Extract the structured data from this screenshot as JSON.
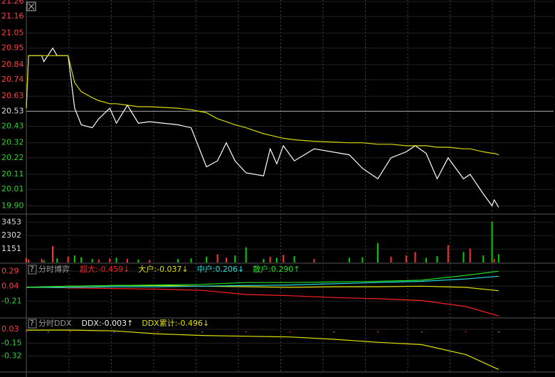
{
  "chart_data": [
    {
      "type": "line",
      "x": [
        0,
        1,
        7,
        8,
        12,
        14,
        19,
        22,
        25,
        30,
        33,
        38,
        41,
        46,
        51,
        56,
        69,
        75,
        82,
        87,
        91,
        95,
        100,
        108,
        111,
        114,
        117,
        122,
        131,
        147,
        153,
        160,
        166,
        173,
        177,
        182,
        187,
        192,
        199,
        202,
        208,
        212,
        213,
        215
      ],
      "xlim": [
        0,
        240
      ],
      "ylim": [
        19.85,
        21.27
      ],
      "reference": 20.53,
      "yticks": [
        21.26,
        21.16,
        21.05,
        {
          "value": 20.95,
          "label": "20.95"
        },
        20.84,
        20.74,
        20.63,
        20.53,
        20.43,
        20.32,
        20.22,
        20.11,
        20.01,
        {
          "value": 19.9,
          "label": "19.90"
        }
      ],
      "series": [
        {
          "color": "#ffffff",
          "values": [
            20.55,
            20.9,
            20.9,
            20.86,
            20.95,
            20.9,
            20.9,
            20.55,
            20.44,
            20.42,
            20.48,
            20.55,
            20.45,
            20.57,
            20.45,
            20.46,
            20.44,
            20.42,
            20.16,
            20.2,
            20.32,
            20.2,
            20.12,
            20.1,
            20.28,
            20.18,
            20.3,
            20.2,
            20.28,
            20.24,
            20.15,
            20.08,
            20.22,
            20.26,
            20.3,
            20.25,
            20.08,
            20.22,
            20.08,
            20.11,
            19.98,
            19.9,
            19.94,
            19.89
          ]
        },
        {
          "color": "#d8d800",
          "values": [
            20.55,
            20.9,
            20.9,
            20.9,
            20.9,
            20.9,
            20.9,
            20.72,
            20.66,
            20.62,
            20.6,
            20.58,
            20.58,
            20.57,
            20.56,
            20.56,
            20.55,
            20.54,
            20.52,
            20.48,
            20.46,
            20.44,
            20.42,
            20.38,
            20.37,
            20.36,
            20.35,
            20.34,
            20.33,
            20.32,
            20.32,
            20.31,
            20.31,
            20.3,
            20.3,
            20.3,
            20.29,
            20.29,
            20.28,
            20.28,
            20.26,
            20.25,
            20.25,
            20.24
          ]
        }
      ]
    },
    {
      "type": "bar",
      "x": [
        0,
        1,
        7,
        8,
        12,
        14,
        19,
        22,
        25,
        30,
        33,
        38,
        41,
        46,
        51,
        56,
        69,
        75,
        82,
        87,
        91,
        95,
        100,
        108,
        111,
        114,
        117,
        122,
        131,
        147,
        153,
        160,
        166,
        173,
        177,
        182,
        187,
        192,
        199,
        202,
        208,
        212,
        213,
        215
      ],
      "xlim": [
        0,
        240
      ],
      "ylim": [
        0,
        3900
      ],
      "yticks": [
        3453,
        2302,
        1151
      ],
      "series": [
        {
          "color": "#ff3232",
          "values": [
            400,
            250,
            300,
            null,
            1400,
            null,
            500,
            null,
            null,
            null,
            250,
            350,
            null,
            300,
            null,
            200,
            null,
            null,
            null,
            700,
            400,
            null,
            null,
            null,
            500,
            null,
            650,
            null,
            300,
            null,
            null,
            null,
            500,
            600,
            900,
            null,
            null,
            1500,
            null,
            1200,
            null,
            null,
            300,
            null
          ]
        },
        {
          "color": "#00d000",
          "values": [
            null,
            null,
            null,
            200,
            null,
            350,
            null,
            600,
            450,
            300,
            null,
            null,
            400,
            null,
            250,
            null,
            300,
            350,
            500,
            null,
            null,
            600,
            1300,
            300,
            null,
            400,
            null,
            550,
            null,
            400,
            450,
            1650,
            null,
            null,
            null,
            400,
            550,
            null,
            900,
            null,
            600,
            3500,
            null,
            700
          ]
        }
      ]
    },
    {
      "type": "line",
      "title": "分时博弈",
      "x": [
        0,
        10,
        20,
        40,
        60,
        80,
        100,
        120,
        140,
        160,
        180,
        200,
        215
      ],
      "xlim": [
        0,
        240
      ],
      "ylim": [
        -0.48,
        0.4
      ],
      "reference": 0,
      "yticks": [
        0.29,
        0.04,
        -0.21
      ],
      "series": [
        {
          "name": "超大:-0.459↓",
          "color": "#ff2020",
          "values": [
            0.02,
            0.02,
            0.01,
            0.0,
            -0.01,
            -0.03,
            -0.1,
            -0.12,
            -0.15,
            -0.17,
            -0.2,
            -0.3,
            -0.459
          ]
        },
        {
          "name": "大户:-0.037↓",
          "color": "#e0e000",
          "values": [
            0.02,
            0.03,
            0.04,
            0.05,
            0.05,
            0.04,
            0.03,
            0.02,
            0.03,
            0.03,
            0.04,
            0.02,
            -0.037
          ]
        },
        {
          "name": "中户:0.206↓",
          "color": "#20e0e0",
          "values": [
            0.02,
            0.02,
            0.02,
            0.03,
            0.03,
            0.04,
            0.05,
            0.06,
            0.08,
            0.1,
            0.12,
            0.16,
            0.206
          ]
        },
        {
          "name": "散户:0.290↑",
          "color": "#20e020",
          "values": [
            0.02,
            0.03,
            0.04,
            0.05,
            0.06,
            0.07,
            0.1,
            0.1,
            0.11,
            0.12,
            0.14,
            0.22,
            0.29
          ]
        }
      ]
    },
    {
      "type": "line",
      "title": "分时DDX",
      "x": [
        0,
        10,
        20,
        40,
        60,
        80,
        100,
        120,
        140,
        160,
        180,
        200,
        215
      ],
      "xlim": [
        0,
        240
      ],
      "ylim": [
        -0.52,
        0.17
      ],
      "reference": 0,
      "yticks": [
        0.03,
        -0.15,
        -0.32
      ],
      "series": [
        {
          "name": "DDX:-0.003↑",
          "type": "bar",
          "color": "#ff3030",
          "negative_color": "#20d0e0",
          "values": [
            0.005,
            -0.003,
            0.004,
            -0.002,
            0.003,
            -0.004,
            0.002,
            0.003,
            -0.003,
            0.004,
            -0.005,
            0.006,
            -0.003
          ]
        },
        {
          "name": "DDX累计:-0.496↓",
          "color": "#e0e000",
          "values": [
            0.02,
            0.02,
            0.02,
            0.01,
            -0.03,
            -0.05,
            -0.06,
            -0.07,
            -0.1,
            -0.14,
            -0.17,
            -0.3,
            -0.496
          ]
        }
      ]
    }
  ]
}
